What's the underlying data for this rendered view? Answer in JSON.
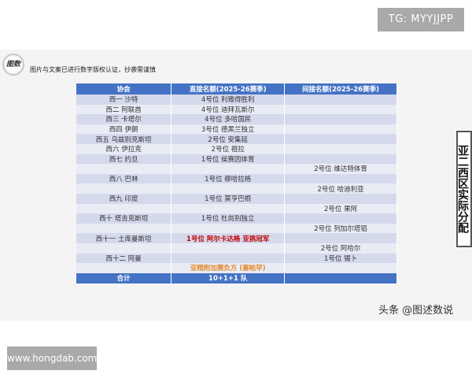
{
  "watermark_top": "TG: MYYJJPP",
  "watermark_bottom": "www.hongdab.com",
  "logo_text": "图数",
  "notice": "图片与文案已进行数字版权认证，抄袭需谨慎",
  "side_label": "亚二西区实际分配",
  "credit": "头条 @图述数说",
  "table": {
    "headers": [
      "协会",
      "直接名额(2025-26赛季)",
      "间接名额(2025-26赛季)"
    ],
    "rows": [
      [
        "西一 沙特",
        "4号位 利雅得胜利",
        ""
      ],
      [
        "西二 阿联酋",
        "4号位 迪拜瓦斯尔",
        ""
      ],
      [
        "西三 卡塔尔",
        "4号位 多哈国民",
        ""
      ],
      [
        "西四 伊朗",
        "3号位 德黑兰独立",
        ""
      ],
      [
        "西五 乌兹别克斯坦",
        "2号位 安集延",
        ""
      ],
      [
        "西六 伊拉克",
        "2号位 祖拉",
        ""
      ],
      [
        "西七 约旦",
        "1号位 侯赛因体育",
        ""
      ],
      [
        "",
        "",
        "2号位 维达特体育"
      ],
      [
        "西八 巴林",
        "1号位 穆哈拉格",
        ""
      ],
      [
        "",
        "",
        "2号位 哈迪利亚"
      ],
      [
        "西九 印度",
        "1号位 莫亨巴根",
        ""
      ],
      [
        "",
        "",
        "2号位 果阿"
      ],
      [
        "西十 塔吉克斯坦",
        "1号位 杜尚别独立",
        ""
      ],
      [
        "",
        "",
        "2号位 列加尔塔铝"
      ],
      [
        "西十一 土库曼斯坦",
        "1号位 阿尔卡达格 亚挑冠军",
        ""
      ],
      [
        "",
        "",
        "2号位 阿哈尔"
      ],
      [
        "西十二 阿曼",
        "",
        "1号位 锡卜"
      ],
      [
        "",
        "亚精附加赛负方 (塞帕罕)",
        ""
      ]
    ],
    "highlight": {
      "14": "red",
      "17": "orange"
    },
    "total": [
      "合计",
      "10+1+1 队",
      ""
    ]
  },
  "colors": {
    "header": "#4472c4",
    "row_dark": "#d4d9ec",
    "row_light": "#e9ecf5",
    "red": "#c00000",
    "orange": "#e58a2e"
  }
}
